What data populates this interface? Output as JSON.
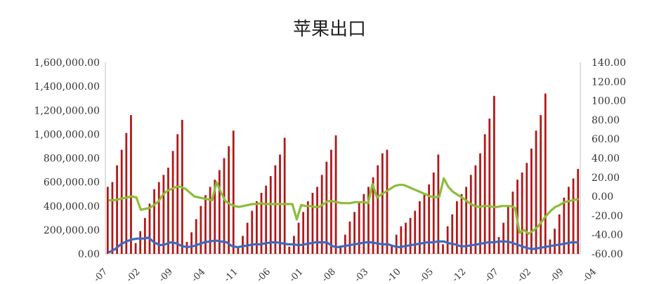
{
  "chart_data": {
    "type": "bar",
    "title": "苹果出口",
    "xlabel": "",
    "ylabel": "",
    "grid": false,
    "legend": "none",
    "colors": {
      "bars": "#b01818",
      "green_line": "#8cbd3a",
      "blue_line": "#3a6bc2",
      "axis": "#bfbfbf"
    },
    "left_axis": {
      "ylim": [
        0,
        1600000
      ],
      "tick_labels": [
        "0.00",
        "200,000.00",
        "400,000.00",
        "600,000.00",
        "800,000.00",
        "1,000,000.00",
        "1,200,000.00",
        "1,400,000.00",
        "1,600,000.00"
      ]
    },
    "right_axis": {
      "ylim": [
        -60,
        140
      ],
      "tick_labels": [
        "-60.00",
        "-40.00",
        "-20.00",
        "0.00",
        "20.00",
        "40.00",
        "60.00",
        "80.00",
        "100.00",
        "120.00",
        "140.00"
      ]
    },
    "x_tick_labels": [
      "-07",
      "-02",
      "-09",
      "-04",
      "-11",
      "-06",
      "-01",
      "-08",
      "-03",
      "-10",
      "-05",
      "-12",
      "-07",
      "-02",
      "-09",
      "-04"
    ],
    "x_tick_every": 7,
    "series": [
      {
        "axis": "left",
        "chart": "bar",
        "values": [
          560000,
          600000,
          740000,
          870000,
          1010000,
          1160000,
          90000,
          190000,
          300000,
          420000,
          540000,
          600000,
          660000,
          720000,
          860000,
          1000000,
          1120000,
          100000,
          180000,
          290000,
          400000,
          490000,
          560000,
          620000,
          700000,
          800000,
          900000,
          1030000,
          60000,
          150000,
          260000,
          360000,
          440000,
          510000,
          570000,
          650000,
          740000,
          830000,
          970000,
          60000,
          150000,
          260000,
          350000,
          440000,
          510000,
          560000,
          660000,
          770000,
          870000,
          990000,
          70000,
          160000,
          270000,
          350000,
          440000,
          500000,
          560000,
          640000,
          740000,
          840000,
          870000,
          70000,
          160000,
          230000,
          260000,
          300000,
          360000,
          440000,
          510000,
          580000,
          680000,
          830000,
          80000,
          230000,
          330000,
          440000,
          500000,
          560000,
          660000,
          740000,
          840000,
          1000000,
          1130000,
          1320000,
          140000,
          260000,
          400000,
          520000,
          620000,
          680000,
          760000,
          880000,
          1030000,
          1160000,
          1340000,
          120000,
          210000,
          330000,
          470000,
          560000,
          630000,
          710000
        ]
      },
      {
        "axis": "right",
        "chart": "line",
        "values": [
          -4,
          -4,
          -3,
          -2,
          -1,
          0,
          -1,
          -14,
          -13,
          -12,
          -9,
          -5,
          2,
          6,
          8,
          10,
          10,
          8,
          4,
          0,
          -1,
          -2,
          -3,
          -4,
          15,
          4,
          -5,
          -8,
          -10,
          -11,
          -10,
          -9,
          -8,
          -8,
          -7,
          -8,
          -8,
          -8,
          -8,
          -8,
          -8,
          -8,
          -24,
          -9,
          -10,
          -10,
          -11,
          -11,
          -8,
          -5,
          -5,
          -6,
          -7,
          -7,
          -7,
          -6,
          -6,
          -6,
          -7,
          13,
          -1,
          2,
          5,
          8,
          11,
          12,
          12,
          10,
          8,
          6,
          4,
          2,
          0,
          -1,
          0,
          19,
          10,
          5,
          2,
          -1,
          -4,
          -8,
          -10,
          -11,
          -10,
          -10,
          -11,
          -11,
          -10,
          -10,
          -10,
          -12,
          -38,
          -35,
          -39,
          -36,
          -32,
          -26,
          -20,
          -15,
          -11,
          -9,
          -6,
          -5,
          -4,
          -3
        ]
      },
      {
        "axis": "right",
        "chart": "line",
        "values": [
          -58,
          -55,
          -50,
          -47,
          -45,
          -44,
          -44,
          -43,
          -48,
          -51,
          -50,
          -48,
          -49,
          -52,
          -53,
          -52,
          -50,
          -48,
          -47,
          -46,
          -47,
          -48,
          -52,
          -53,
          -52,
          -51,
          -50,
          -50,
          -49,
          -48,
          -48,
          -49,
          -50,
          -50,
          -51,
          -50,
          -49,
          -48,
          -48,
          -48,
          -52,
          -53,
          -52,
          -51,
          -50,
          -49,
          -48,
          -48,
          -49,
          -50,
          -50,
          -52,
          -53,
          -52,
          -51,
          -50,
          -49,
          -48,
          -48,
          -47,
          -47,
          -49,
          -50,
          -52,
          -52,
          -51,
          -50,
          -49,
          -48,
          -48,
          -47,
          -47,
          -48,
          -50,
          -52,
          -54,
          -55,
          -54,
          -53,
          -52,
          -51,
          -50,
          -49,
          -48,
          -48
        ]
      }
    ]
  }
}
